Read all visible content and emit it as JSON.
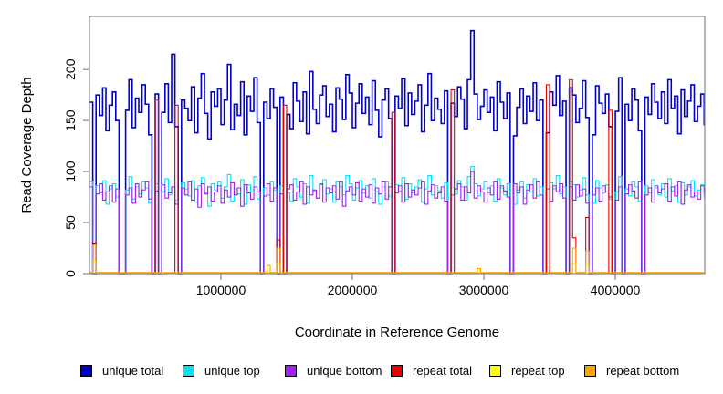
{
  "chart_data": {
    "type": "line",
    "subtype": "step",
    "title": "",
    "xlabel": "Coordinate in Reference Genome",
    "ylabel": "Read Coverage Depth",
    "x_start": 0,
    "x_step": 25000,
    "n_points": 188,
    "xlim": [
      0,
      4680000
    ],
    "ylim": [
      0,
      252
    ],
    "x_ticks": [
      1000000,
      2000000,
      3000000,
      4000000
    ],
    "x_tick_labels": [
      "1000000",
      "2000000",
      "3000000",
      "4000000"
    ],
    "y_ticks": [
      0,
      50,
      100,
      150,
      200
    ],
    "grid": false,
    "legend_position": "bottom",
    "axis_color": "#888888",
    "series": [
      {
        "name": "unique total",
        "color": "#0000CC",
        "values": [
          168,
          0,
          175,
          155,
          182,
          140,
          165,
          178,
          150,
          0,
          0,
          160,
          190,
          143,
          172,
          158,
          185,
          166,
          136,
          0,
          176,
          0,
          158,
          186,
          148,
          215,
          144,
          0,
          170,
          162,
          150,
          183,
          138,
          172,
          196,
          157,
          132,
          178,
          164,
          181,
          146,
          170,
          205,
          141,
          166,
          155,
          188,
          136,
          174,
          159,
          192,
          148,
          0,
          168,
          152,
          181,
          163,
          0,
          173,
          0,
          156,
          142,
          187,
          169,
          149,
          178,
          137,
          198,
          161,
          147,
          175,
          184,
          154,
          166,
          139,
          182,
          171,
          151,
          195,
          177,
          143,
          167,
          186,
          157,
          173,
          146,
          189,
          160,
          134,
          170,
          181,
          152,
          0,
          174,
          162,
          191,
          145,
          177,
          156,
          169,
          185,
          139,
          165,
          196,
          150,
          172,
          161,
          147,
          179,
          0,
          167,
          154,
          183,
          171,
          142,
          190,
          238,
          176,
          151,
          164,
          180,
          158,
          173,
          140,
          188,
          168,
          152,
          177,
          0,
          135,
          163,
          181,
          147,
          174,
          159,
          187,
          150,
          170,
          0,
          138,
          178,
          165,
          194,
          155,
          169,
          0,
          182,
          175,
          148,
          162,
          189,
          153,
          0,
          136,
          184,
          167,
          157,
          176,
          144,
          0,
          159,
          192,
          0,
          166,
          150,
          181,
          170,
          140,
          0,
          173,
          156,
          186,
          168,
          152,
          178,
          147,
          190,
          162,
          174,
          137,
          180,
          154,
          169,
          185,
          149,
          164,
          176,
          146
        ]
      },
      {
        "name": "unique top",
        "color": "#00E5EE",
        "values": [
          90,
          0,
          86,
          79,
          91,
          68,
          83,
          88,
          75,
          0,
          0,
          82,
          95,
          73,
          85,
          78,
          90,
          84,
          69,
          0,
          88,
          0,
          80,
          93,
          77,
          85,
          72,
          0,
          89,
          83,
          76,
          91,
          70,
          86,
          94,
          79,
          66,
          88,
          82,
          90,
          74,
          85,
          97,
          71,
          83,
          78,
          92,
          68,
          87,
          80,
          95,
          73,
          0,
          84,
          77,
          90,
          82,
          0,
          86,
          0,
          79,
          71,
          93,
          85,
          75,
          88,
          69,
          96,
          81,
          74,
          87,
          92,
          78,
          83,
          70,
          90,
          85,
          77,
          96,
          88,
          72,
          84,
          91,
          79,
          86,
          74,
          93,
          80,
          68,
          85,
          90,
          76,
          0,
          87,
          81,
          94,
          73,
          88,
          79,
          85,
          92,
          70,
          83,
          96,
          77,
          86,
          81,
          74,
          89,
          0,
          84,
          78,
          91,
          85,
          72,
          95,
          105,
          88,
          76,
          83,
          90,
          79,
          86,
          71,
          93,
          84,
          77,
          88,
          0,
          68,
          82,
          90,
          74,
          87,
          80,
          93,
          76,
          85,
          0,
          70,
          89,
          83,
          96,
          78,
          85,
          0,
          90,
          87,
          75,
          82,
          94,
          77,
          0,
          69,
          91,
          84,
          79,
          87,
          73,
          0,
          80,
          95,
          0,
          83,
          76,
          90,
          85,
          71,
          0,
          86,
          79,
          92,
          84,
          77,
          88,
          75,
          93,
          81,
          86,
          70,
          89,
          77,
          85,
          91,
          76,
          82,
          87,
          74
        ]
      },
      {
        "name": "unique bottom",
        "color": "#A020F0",
        "values": [
          85,
          0,
          78,
          88,
          72,
          80,
          86,
          70,
          83,
          0,
          0,
          77,
          84,
          69,
          88,
          75,
          82,
          90,
          73,
          0,
          81,
          0,
          87,
          74,
          79,
          85,
          68,
          0,
          84,
          77,
          90,
          72,
          83,
          65,
          88,
          78,
          85,
          71,
          80,
          86,
          69,
          82,
          75,
          89,
          77,
          84,
          66,
          87,
          79,
          73,
          85,
          80,
          0,
          76,
          88,
          71,
          84,
          0,
          78,
          0,
          83,
          87,
          72,
          80,
          90,
          68,
          85,
          77,
          82,
          74,
          88,
          70,
          84,
          79,
          86,
          73,
          90,
          66,
          81,
          85,
          77,
          89,
          71,
          83,
          75,
          87,
          69,
          84,
          78,
          90,
          73,
          85,
          0,
          79,
          86,
          70,
          88,
          75,
          82,
          77,
          84,
          90,
          68,
          81,
          87,
          74,
          79,
          85,
          71,
          0,
          77,
          83,
          88,
          72,
          85,
          79,
          100,
          74,
          86,
          80,
          70,
          84,
          77,
          90,
          73,
          86,
          81,
          75,
          0,
          88,
          79,
          85,
          68,
          82,
          87,
          74,
          90,
          77,
          0,
          83,
          71,
          86,
          80,
          88,
          74,
          0,
          85,
          72,
          87,
          76,
          83,
          69,
          0,
          77,
          84,
          71,
          86,
          80,
          75,
          0,
          72,
          85,
          0,
          78,
          87,
          81,
          74,
          90,
          0,
          77,
          84,
          70,
          86,
          79,
          83,
          88,
          71,
          85,
          76,
          90,
          68,
          82,
          87,
          75,
          80,
          73,
          86,
          79
        ]
      },
      {
        "name": "repeat total",
        "color": "#E60000",
        "baseline": 1,
        "spikes": {
          "1": 30,
          "20": 170,
          "26": 165,
          "57": 33,
          "59": 165,
          "92": 158,
          "110": 180,
          "139": 185,
          "146": 190,
          "147": 35,
          "151": 55,
          "158": 160
        }
      },
      {
        "name": "repeat top",
        "color": "#FFFF00",
        "baseline": 1,
        "spikes": {
          "1": 12,
          "57": 10,
          "147": 10,
          "151": 8
        }
      },
      {
        "name": "repeat bottom",
        "color": "#FFA500",
        "baseline": 1,
        "spikes": {
          "1": 28,
          "54": 8,
          "57": 25,
          "118": 5,
          "147": 25,
          "151": 22
        }
      }
    ]
  },
  "legend": {
    "items": [
      {
        "label": "unique total",
        "color": "#0000CC"
      },
      {
        "label": "unique top",
        "color": "#00E5EE"
      },
      {
        "label": "unique bottom",
        "color": "#A020F0"
      },
      {
        "label": "repeat total",
        "color": "#E60000"
      },
      {
        "label": "repeat top",
        "color": "#FFFF00"
      },
      {
        "label": "repeat bottom",
        "color": "#FFA500"
      }
    ]
  }
}
